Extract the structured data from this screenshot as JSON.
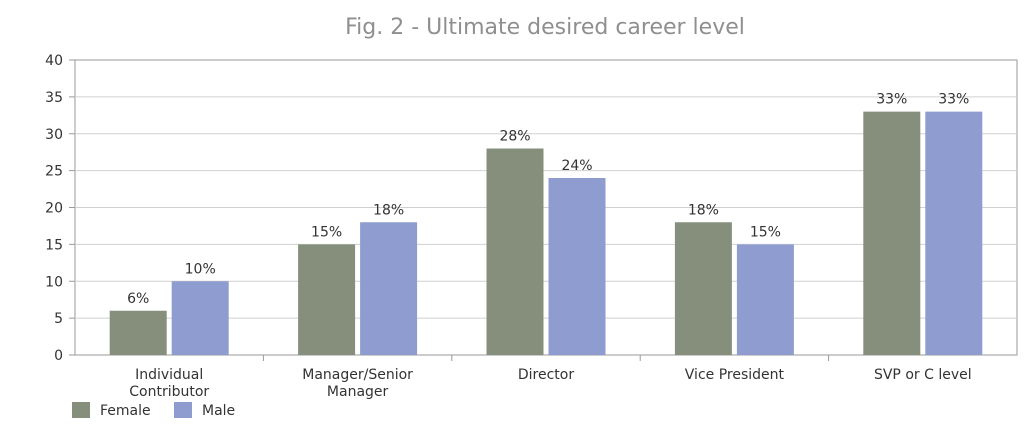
{
  "chart_data": {
    "type": "bar",
    "title": "Fig. 2 - Ultimate desired career level",
    "xlabel": "",
    "ylabel": "",
    "ylim": [
      0,
      40
    ],
    "yticks": [
      "0",
      "5",
      "10",
      "15",
      "20",
      "25",
      "30",
      "35",
      "40"
    ],
    "categories": [
      [
        "Individual",
        "Contributor"
      ],
      [
        "Manager/Senior",
        "Manager"
      ],
      [
        "Director"
      ],
      [
        "Vice President"
      ],
      [
        "SVP or C level"
      ]
    ],
    "series": [
      {
        "name": "Female",
        "color": "#868f7b",
        "values": [
          6,
          15,
          28,
          18,
          33
        ],
        "labels": [
          "6%",
          "15%",
          "28%",
          "18%",
          "33%"
        ]
      },
      {
        "name": "Male",
        "color": "#8e9ccf",
        "values": [
          10,
          18,
          24,
          15,
          33
        ],
        "labels": [
          "10%",
          "18%",
          "24%",
          "15%",
          "33%"
        ]
      }
    ],
    "grid": true,
    "legend": "bottom-left"
  }
}
